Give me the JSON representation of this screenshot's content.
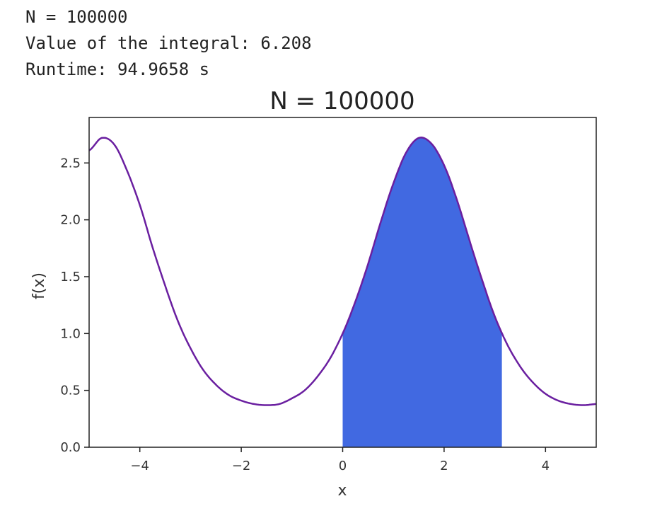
{
  "console": {
    "lines": [
      "N = 100000",
      "Value of the integral: 6.208",
      "Runtime: 94.9658 s"
    ]
  },
  "chart_data": {
    "type": "area",
    "title": "N = 100000",
    "xlabel": "x",
    "ylabel": "f(x)",
    "xlim": [
      -5,
      5
    ],
    "ylim": [
      0,
      2.9
    ],
    "xticks": [
      -4,
      -2,
      0,
      2,
      4
    ],
    "xtick_labels": [
      "−4",
      "−2",
      "0",
      "2",
      "4"
    ],
    "yticks": [
      0.0,
      0.5,
      1.0,
      1.5,
      2.0,
      2.5
    ],
    "ytick_labels": [
      "0.0",
      "0.5",
      "1.0",
      "1.5",
      "2.0",
      "2.5"
    ],
    "grid": false,
    "series": [
      {
        "kind": "line",
        "color": "#6a1fa0",
        "x": [
          -5.0,
          -4.75,
          -4.5,
          -4.25,
          -4.0,
          -3.75,
          -3.5,
          -3.25,
          -3.0,
          -2.75,
          -2.5,
          -2.25,
          -2.0,
          -1.75,
          -1.5,
          -1.25,
          -1.0,
          -0.75,
          -0.5,
          -0.25,
          0.0,
          0.25,
          0.5,
          0.75,
          1.0,
          1.25,
          1.5,
          1.75,
          2.0,
          2.25,
          2.5,
          2.75,
          3.0,
          3.25,
          3.5,
          3.75,
          4.0,
          4.25,
          4.5,
          4.75,
          5.0
        ],
        "y": [
          2.61,
          2.72,
          2.66,
          2.43,
          2.13,
          1.76,
          1.42,
          1.11,
          0.87,
          0.68,
          0.55,
          0.46,
          0.41,
          0.38,
          0.37,
          0.38,
          0.43,
          0.5,
          0.62,
          0.78,
          1.0,
          1.28,
          1.61,
          1.98,
          2.32,
          2.59,
          2.72,
          2.67,
          2.48,
          2.18,
          1.82,
          1.47,
          1.15,
          0.9,
          0.71,
          0.57,
          0.47,
          0.41,
          0.38,
          0.37,
          0.38
        ]
      },
      {
        "kind": "filled-area",
        "color": "#4169e1",
        "x_range": [
          0,
          3.14
        ]
      }
    ]
  }
}
